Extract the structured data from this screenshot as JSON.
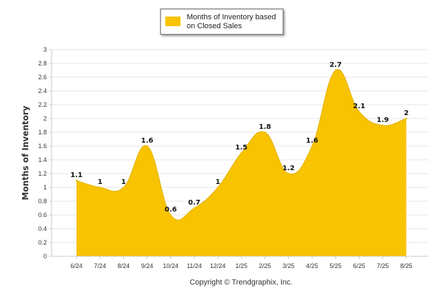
{
  "chart_data": {
    "type": "area",
    "categories": [
      "6/24",
      "7/24",
      "8/24",
      "9/24",
      "10/24",
      "11/24",
      "12/24",
      "1/25",
      "2/25",
      "3/25",
      "4/25",
      "5/25",
      "6/25",
      "7/25",
      "8/25"
    ],
    "series": [
      {
        "name": "Months of Inventory based on Closed Sales",
        "values": [
          1.1,
          1,
          1,
          1.6,
          0.6,
          0.7,
          1,
          1.5,
          1.8,
          1.2,
          1.6,
          2.7,
          2.1,
          1.9,
          2
        ],
        "color": "#F8C300"
      }
    ],
    "data_labels": [
      "1.1",
      "1",
      "1",
      "1.6",
      "0.6",
      "0.7",
      "1",
      "1.5",
      "1.8",
      "1.2",
      "1.6",
      "2.7",
      "2.1",
      "1.9",
      "2"
    ],
    "title": "",
    "xlabel": "",
    "ylabel": "Months of Inventory",
    "ylim": [
      0,
      3
    ],
    "yticks": [
      "0",
      "0.2",
      "0.4",
      "0.6",
      "0.8",
      "1",
      "1.2",
      "1.4",
      "1.6",
      "1.8",
      "2",
      "2.2",
      "2.4",
      "2.6",
      "2.8",
      "3"
    ],
    "grid": true,
    "legend": {
      "position": "top-center",
      "lines": [
        "Months of Inventory based",
        "on Closed Sales"
      ],
      "swatch_color": "#F8C300"
    },
    "footer": "Copyright © Trendgraphix, Inc."
  }
}
